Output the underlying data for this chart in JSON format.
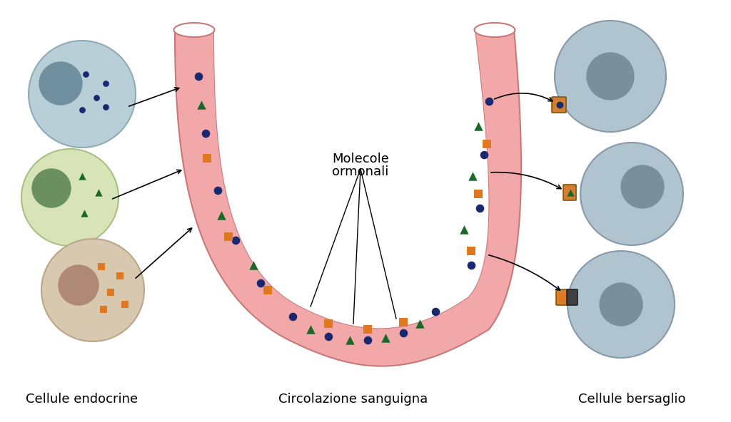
{
  "bg_color": "#ffffff",
  "vessel_color": "#f2a8a8",
  "vessel_outline": "#c87878",
  "cell_blue_fill": "#b8cfd8",
  "cell_blue_outline": "#90aab8",
  "cell_green_fill": "#d8e4b8",
  "cell_green_outline": "#a8c080",
  "cell_tan_fill": "#d8c8b0",
  "cell_tan_outline": "#b8a888",
  "cell_nucleus_blue": "#7090a0",
  "cell_nucleus_green": "#6a9060",
  "cell_nucleus_tan": "#b08878",
  "target_cell_fill": "#b0c4d0",
  "target_cell_outline": "#8899aa",
  "target_nucleus_color": "#7a8e9c",
  "dot_color": "#1a2870",
  "triangle_color": "#1a6828",
  "square_color": "#e07820",
  "receptor_orange": "#d08030",
  "receptor_dark": "#404040",
  "label_cellule_endocrine": "Cellule endocrine",
  "label_circolazione": "Circolazione sanguigna",
  "label_bersaglio": "Cellule bersaglio",
  "label_molecole_line1": "Molecole",
  "label_molecole_line2": "ormonali",
  "font_size": 13
}
